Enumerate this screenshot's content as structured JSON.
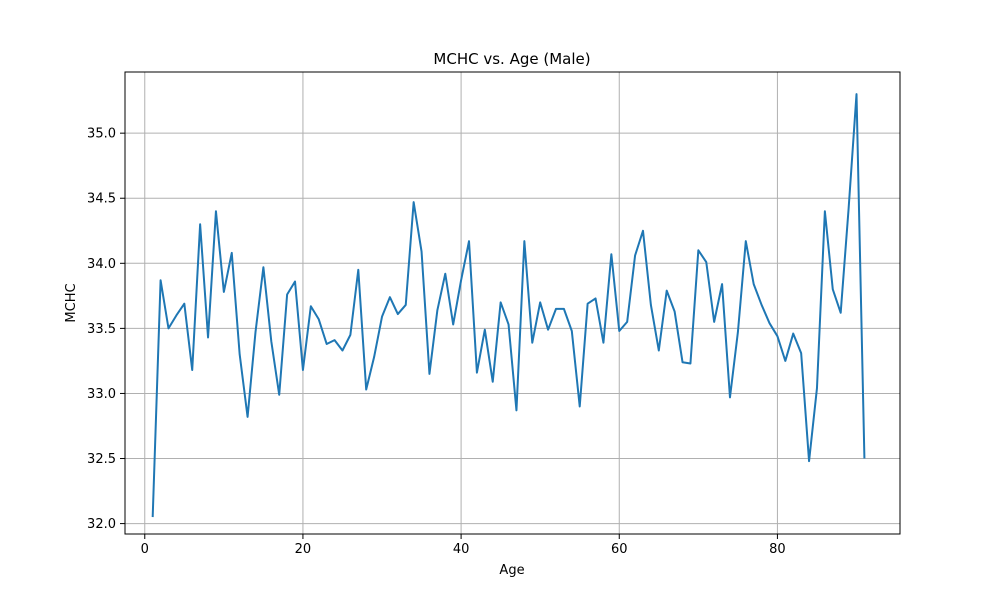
{
  "chart_data": {
    "type": "line",
    "title": "MCHC vs. Age (Male)",
    "xlabel": "Age",
    "ylabel": "MCHC",
    "xlim": [
      -2.5,
      95.5
    ],
    "ylim": [
      31.92,
      35.47
    ],
    "xticks": [
      0,
      20,
      40,
      60,
      80
    ],
    "yticks": [
      32.0,
      32.5,
      33.0,
      33.5,
      34.0,
      34.5,
      35.0
    ],
    "xtick_labels": [
      "0",
      "20",
      "40",
      "60",
      "80"
    ],
    "ytick_labels": [
      "32.0",
      "32.5",
      "33.0",
      "33.5",
      "34.0",
      "34.5",
      "35.0"
    ],
    "grid": true,
    "line_color": "#1f77b4",
    "series": [
      {
        "x": [
          1,
          2,
          3,
          4,
          5,
          6,
          7,
          8,
          9,
          10,
          11,
          12,
          13,
          14,
          15,
          16,
          17,
          18,
          19,
          20,
          21,
          22,
          23,
          24,
          25,
          26,
          27,
          28,
          29,
          30,
          31,
          32,
          33,
          34,
          35,
          36,
          37,
          38,
          39,
          40,
          41,
          42,
          43,
          44,
          45,
          46,
          47,
          48,
          49,
          50,
          51,
          52,
          53,
          54,
          55,
          56,
          57,
          58,
          59,
          60,
          61,
          62,
          63,
          64,
          65,
          66,
          67,
          68,
          69,
          70,
          71,
          72,
          73,
          74,
          75,
          76,
          77,
          78,
          79,
          80,
          81,
          82,
          83,
          84,
          85,
          86,
          87,
          88,
          89,
          90,
          91
        ],
        "values": [
          32.05,
          33.87,
          33.5,
          33.6,
          33.69,
          33.18,
          34.3,
          33.43,
          34.4,
          33.78,
          34.08,
          33.3,
          32.82,
          33.47,
          33.97,
          33.4,
          32.99,
          33.76,
          33.86,
          33.18,
          33.67,
          33.57,
          33.38,
          33.41,
          33.33,
          33.45,
          33.95,
          33.03,
          33.28,
          33.59,
          33.74,
          33.61,
          33.68,
          34.47,
          34.09,
          33.15,
          33.64,
          33.92,
          33.53,
          33.87,
          34.17,
          33.16,
          33.49,
          33.09,
          33.7,
          33.53,
          32.87,
          34.17,
          33.39,
          33.7,
          33.49,
          33.65,
          33.65,
          33.48,
          32.9,
          33.69,
          33.73,
          33.39,
          34.07,
          33.48,
          33.55,
          34.06,
          34.25,
          33.68,
          33.33,
          33.79,
          33.63,
          33.24,
          33.23,
          34.1,
          34.01,
          33.55,
          33.84,
          32.97,
          33.47,
          34.17,
          33.84,
          33.68,
          33.54,
          33.44,
          33.25,
          33.46,
          33.31,
          32.48,
          33.04,
          34.4,
          33.8,
          33.62,
          34.42,
          35.3,
          32.5
        ]
      }
    ]
  }
}
